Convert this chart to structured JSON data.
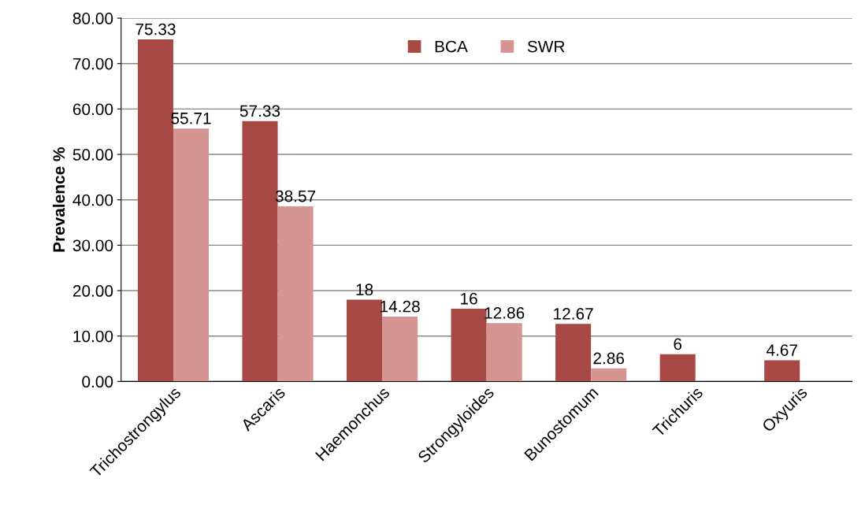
{
  "chart_data": {
    "type": "bar",
    "ylabel": "Prevalence %",
    "categories": [
      "Trichostrongylus",
      "Ascaris",
      "Haemonchus",
      "Strongyloides",
      "Bunostomum",
      "Trichuris",
      "Oxyuris"
    ],
    "series": [
      {
        "name": "BCA",
        "color": "#a84844",
        "values": [
          75.33,
          57.33,
          18,
          16,
          12.67,
          6,
          4.67
        ]
      },
      {
        "name": "SWR",
        "color": "#d49593",
        "values": [
          55.71,
          38.57,
          14.28,
          12.86,
          2.86,
          null,
          null
        ]
      }
    ],
    "ylim": [
      0,
      80
    ],
    "yticks": [
      {
        "value": 0,
        "label": "0.00"
      },
      {
        "value": 10,
        "label": "10.00"
      },
      {
        "value": 20,
        "label": "20.00"
      },
      {
        "value": 30,
        "label": "30.00"
      },
      {
        "value": 40,
        "label": "40.00"
      },
      {
        "value": 50,
        "label": "50.00"
      },
      {
        "value": 60,
        "label": "60.00"
      },
      {
        "value": 70,
        "label": "70.00"
      },
      {
        "value": 80,
        "label": "80.00"
      }
    ],
    "grid": "y",
    "legend": "top",
    "data_labels": true
  }
}
